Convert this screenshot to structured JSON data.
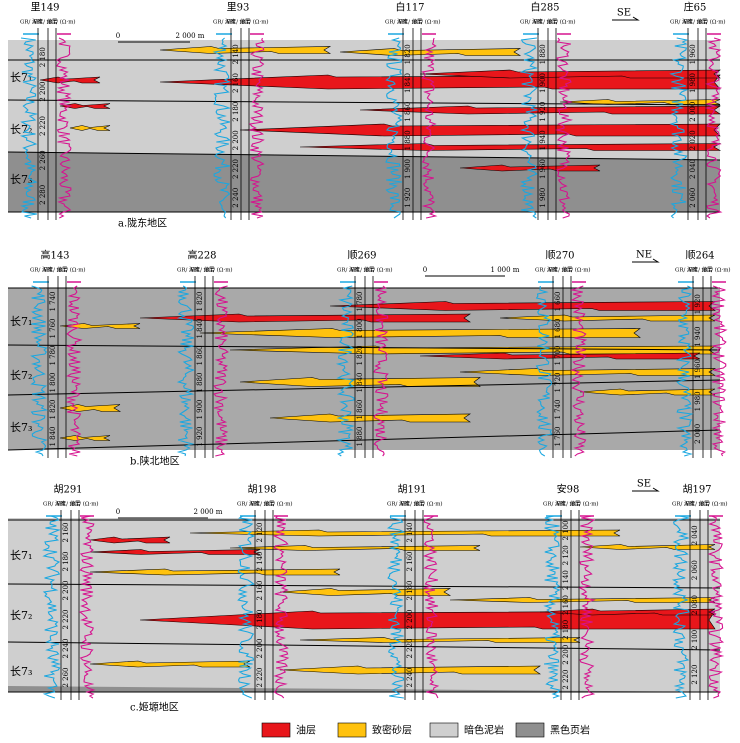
{
  "panels": [
    {
      "caption": "a.陇东地区",
      "direction": "SE",
      "scale": [
        "0",
        "2 000 m"
      ],
      "layers": [
        "长7₁",
        "长7₂",
        "长7₃"
      ],
      "wells": [
        {
          "name": "里149",
          "depths": [
            "2 180",
            "2 200",
            "2 220",
            "2 260",
            "2 280"
          ]
        },
        {
          "name": "里93",
          "depths": [
            "2 140",
            "2 160",
            "2 180",
            "2 200",
            "2 220",
            "2 240"
          ]
        },
        {
          "name": "白117",
          "depths": [
            "1 820",
            "1 840",
            "1 860",
            "1 880",
            "1 900",
            "1 920"
          ]
        },
        {
          "name": "白285",
          "depths": [
            "1 880",
            "1 900",
            "1 920",
            "1 940",
            "1 960",
            "1 980"
          ]
        },
        {
          "name": "庄65",
          "depths": [
            "1 960",
            "1 980",
            "2 000",
            "2 020",
            "2 040",
            "2 060"
          ]
        }
      ]
    },
    {
      "caption": "b.陕北地区",
      "direction": "NE",
      "scale": [
        "0",
        "1 000 m"
      ],
      "layers": [
        "长7₁",
        "长7₂",
        "长7₃"
      ],
      "wells": [
        {
          "name": "高143",
          "depths": [
            "1 740",
            "1 760",
            "1 780",
            "1 800",
            "1 820",
            "1 840"
          ]
        },
        {
          "name": "高228",
          "depths": [
            "1 820",
            "1 840",
            "1 860",
            "1 880",
            "1 900",
            "1 920"
          ]
        },
        {
          "name": "顺269",
          "depths": [
            "1 780",
            "1 800",
            "1 820",
            "1 840",
            "1 860",
            "1 880"
          ]
        },
        {
          "name": "顺270",
          "depths": [
            "1 660",
            "1 680",
            "1 700",
            "1 720",
            "1 740",
            "1 760"
          ]
        },
        {
          "name": "顺264",
          "depths": [
            "1 920",
            "1 940",
            "1 960",
            "1 980",
            "2 000"
          ]
        }
      ]
    },
    {
      "caption": "c.姬塬地区",
      "direction": "SE",
      "scale": [
        "0",
        "2 000 m"
      ],
      "layers": [
        "长7₁",
        "长7₂",
        "长7₃"
      ],
      "wells": [
        {
          "name": "胡291",
          "depths": [
            "2 160",
            "2 180",
            "2 200",
            "2 220",
            "2 240",
            "2 260"
          ]
        },
        {
          "name": "胡198",
          "depths": [
            "2 120",
            "2 140",
            "2 160",
            "2 180",
            "2 200",
            "2 220"
          ]
        },
        {
          "name": "胡191",
          "depths": [
            "2 140",
            "2 160",
            "2 180",
            "2 200",
            "2 220",
            "2 240"
          ]
        },
        {
          "name": "安98",
          "depths": [
            "2 100",
            "2 120",
            "2 140",
            "2 160",
            "2 180",
            "2 200",
            "2 220"
          ]
        },
        {
          "name": "胡197",
          "depths": [
            "2 040",
            "2 060",
            "2 080",
            "2 100",
            "2 120"
          ]
        }
      ]
    }
  ],
  "log_headers": [
    "GR/ API",
    "深度/ m",
    "分层",
    "RT/ (Ω·m)"
  ],
  "legend": [
    {
      "label": "油层",
      "color": "#e8161b"
    },
    {
      "label": "致密砂层",
      "color": "#ffc20e"
    },
    {
      "label": "暗色泥岩",
      "color": "#cfcfcf"
    },
    {
      "label": "黑色页岩",
      "color": "#8f8f8f"
    }
  ]
}
